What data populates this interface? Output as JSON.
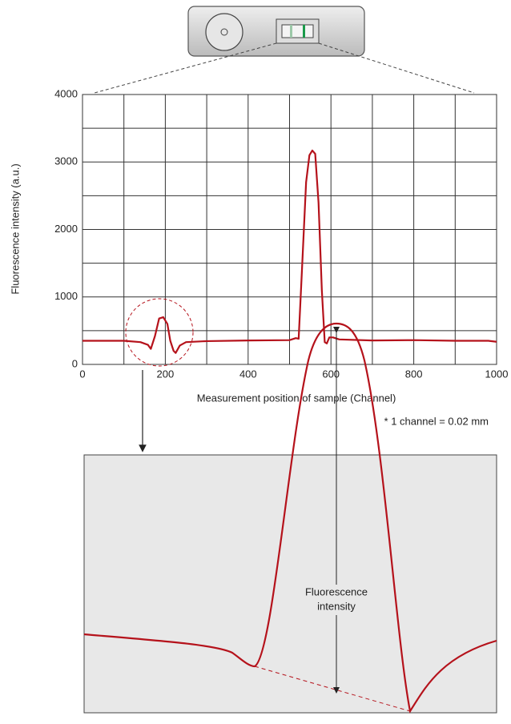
{
  "chart_data": {
    "type": "line",
    "x_label": "Measurement position of sample (Channel)",
    "y_label": "Fluorescence intensity (a.u.)",
    "note": "* 1 channel = 0.02 mm",
    "zoom_label": [
      "Fluorescence",
      "intensity"
    ],
    "x": [
      0,
      100,
      140,
      158,
      165,
      175,
      185,
      195,
      205,
      212,
      220,
      225,
      235,
      250,
      300,
      400,
      500,
      515,
      522,
      530,
      540,
      548,
      555,
      562,
      570,
      578,
      585,
      590,
      596,
      605,
      620,
      700,
      800,
      900,
      980,
      1000
    ],
    "series": [
      {
        "color": "#b5121b",
        "values": [
          350,
          350,
          330,
          290,
          230,
          420,
          680,
          700,
          600,
          350,
          200,
          170,
          280,
          330,
          345,
          355,
          360,
          390,
          380,
          1400,
          2700,
          3100,
          3170,
          3120,
          2400,
          1100,
          330,
          310,
          400,
          400,
          370,
          355,
          360,
          350,
          350,
          335
        ]
      }
    ],
    "xlim": [
      0,
      1000
    ],
    "ylim": [
      0,
      4000
    ],
    "xticks": [
      0,
      200,
      400,
      600,
      800,
      1000
    ],
    "yticks": [
      0,
      1000,
      2000,
      3000,
      4000
    ],
    "x_grid": [
      100,
      300,
      500,
      700,
      900
    ],
    "y_grid": [
      500,
      1500,
      2500,
      3500
    ],
    "grid": true
  }
}
